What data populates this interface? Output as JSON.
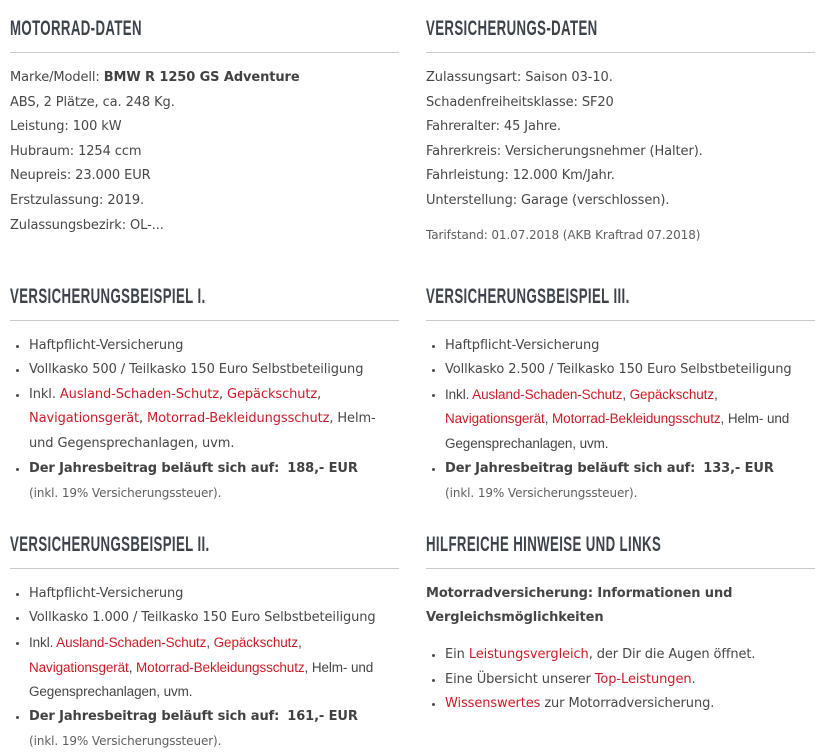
{
  "colors": {
    "link_red": "#cc1b28",
    "heading": "#3d434b",
    "body_text": "#474747",
    "muted_text": "#5f5f5f",
    "divider": "#cbcbcb",
    "background": "#ffffff"
  },
  "motorrad": {
    "title": "MOTORRAD-DATEN",
    "model_label": "Marke/Modell:",
    "model_value": "BMW R 1250 GS Adventure",
    "lines": [
      "ABS, 2 Plätze, ca. 248 Kg.",
      "Leistung: 100 kW",
      "Hubraum: 1254 ccm",
      "Neupreis: 23.000 EUR",
      "Erstzulassung: 2019.",
      "Zulassungsbezirk: OL-..."
    ]
  },
  "versicherung": {
    "title": "VERSICHERUNGS-DATEN",
    "lines": [
      "Zulassungsart: Saison 03-10.",
      "Schadenfreiheitsklasse: SF20",
      "Fahreralter: 45 Jahre.",
      "Fahrerkreis: Versicherungsnehmer (Halter).",
      "Fahrleistung: 12.000 Km/Jahr.",
      "Unterstellung: Garage (verschlossen)."
    ],
    "tarifstand": "Tarifstand: 01.07.2018 (AKB Kraftrad 07.2018)"
  },
  "beispiel1": {
    "title": "VERSICHERUNGSBEISPIEL I.",
    "bullet1": "Haftpflicht-Versicherung",
    "bullet2": "Vollkasko 500 / Teilkasko 150 Euro Selbstbeteiligung",
    "inkl_prefix": "Inkl. ",
    "links": [
      "Ausland-Schaden-Schutz",
      "Gepäckschutz",
      "Navigationsgerät",
      "Motorrad-Bekleidungsschutz"
    ],
    "sep": ", ",
    "inkl_suffix": ", Helm- und Gegensprechanlagen, uvm.",
    "price_label": "Der Jahresbeitrag beläuft sich auf:",
    "price_value": "188,- EUR",
    "tax_note": "(inkl. 19% Versicherungssteuer)."
  },
  "beispiel3": {
    "title": "VERSICHERUNGSBEISPIEL III.",
    "bullet1": "Haftpflicht-Versicherung",
    "bullet2": "Vollkasko 2.500 / Teilkasko 150 Euro Selbstbeteiligung",
    "inkl_prefix": "Inkl. ",
    "links": [
      "Ausland-Schaden-Schutz",
      "Gepäckschutz",
      "Navigationsgerät",
      "Motorrad-Bekleidungsschutz"
    ],
    "sep": ", ",
    "inkl_suffix": ", Helm- und Gegensprechanlagen, uvm.",
    "price_label": "Der Jahresbeitrag beläuft sich auf:",
    "price_value": "133,- EUR",
    "tax_note": "(inkl. 19% Versicherungssteuer)."
  },
  "beispiel2": {
    "title": "VERSICHERUNGSBEISPIEL II.",
    "bullet1": "Haftpflicht-Versicherung",
    "bullet2": "Vollkasko 1.000 / Teilkasko 150 Euro Selbstbeteiligung",
    "inkl_prefix": "Inkl. ",
    "links": [
      "Ausland-Schaden-Schutz",
      "Gepäckschutz",
      "Navigationsgerät",
      "Motorrad-Bekleidungsschutz"
    ],
    "sep": ", ",
    "inkl_suffix": ", Helm- und Gegensprechanlagen, uvm.",
    "price_label": "Der Jahresbeitrag beläuft sich auf:",
    "price_value": "161,- EUR",
    "tax_note": "(inkl. 19% Versicherungssteuer)."
  },
  "hinweise": {
    "title": "HILFREICHE HINWEISE UND LINKS",
    "intro": "Motorradversicherung: Informationen und Vergleichsmöglichkeiten",
    "items": [
      {
        "prefix": "Ein ",
        "link": "Leistungsvergleich",
        "suffix": ", der Dir die Augen öffnet."
      },
      {
        "prefix": "Eine Übersicht unserer ",
        "link": "Top-Leistungen",
        "suffix": "."
      },
      {
        "prefix": "",
        "link": "Wissenswertes",
        "suffix": " zur Motorradversicherung."
      }
    ]
  }
}
